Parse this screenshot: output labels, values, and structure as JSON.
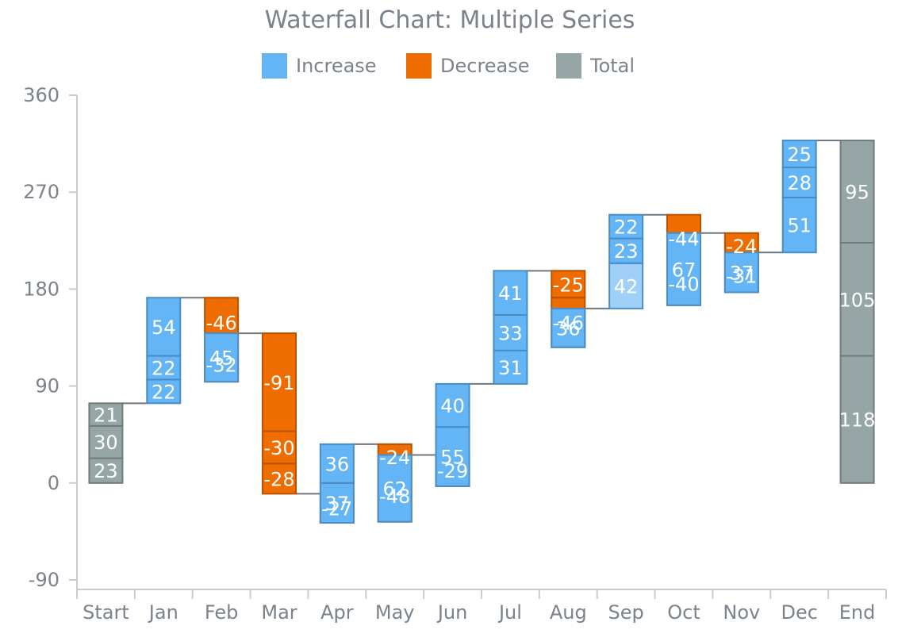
{
  "chart_data": {
    "type": "bar",
    "title": "Waterfall Chart: Multiple Series",
    "xlabel": "",
    "ylabel": "",
    "ylim": [
      -90,
      360
    ],
    "yticks": [
      -90,
      0,
      90,
      180,
      270,
      360
    ],
    "categories": [
      "Start",
      "Jan",
      "Feb",
      "Mar",
      "Apr",
      "May",
      "Jun",
      "Jul",
      "Aug",
      "Sep",
      "Oct",
      "Nov",
      "Dec",
      "End"
    ],
    "legend": [
      {
        "name": "Increase",
        "color": "#64b5f6"
      },
      {
        "name": "Decrease",
        "color": "#ef6c00"
      },
      {
        "name": "Total",
        "color": "#96a6a6"
      }
    ],
    "legend_position": "top",
    "grid": false,
    "colors": {
      "increase_fill": "#64b5f6",
      "increase_stroke": "#4a8cc4",
      "increase_light_fill": "#a0d0f8",
      "decrease_fill": "#ef6c00",
      "decrease_stroke": "#b85200",
      "total_fill": "#96a6a6",
      "total_stroke": "#707c7c",
      "connector": "#6e7880",
      "axis": "#cccccc",
      "text": "#7a828c"
    },
    "series": [
      {
        "category": "Start",
        "kind": "total",
        "segments": [
          23,
          30,
          21
        ]
      },
      {
        "category": "Jan",
        "kind": "change",
        "segments": [
          22,
          22,
          54
        ]
      },
      {
        "category": "Feb",
        "kind": "change",
        "segments": [
          -46,
          -32,
          45
        ]
      },
      {
        "category": "Mar",
        "kind": "change",
        "segments": [
          -91,
          -30,
          -28
        ]
      },
      {
        "category": "Apr",
        "kind": "change",
        "segments": [
          -27,
          37,
          36
        ]
      },
      {
        "category": "May",
        "kind": "change",
        "segments": [
          -24,
          -48,
          62
        ]
      },
      {
        "category": "Jun",
        "kind": "change",
        "segments": [
          -29,
          55,
          40
        ]
      },
      {
        "category": "Jul",
        "kind": "change",
        "segments": [
          31,
          33,
          41
        ]
      },
      {
        "category": "Aug",
        "kind": "change",
        "segments": [
          -25,
          -46,
          36
        ]
      },
      {
        "category": "Sep",
        "kind": "change",
        "segments": [
          42,
          23,
          22
        ],
        "highlight_segment": 0
      },
      {
        "category": "Oct",
        "kind": "change",
        "segments": [
          -44,
          -40,
          67
        ]
      },
      {
        "category": "Nov",
        "kind": "change",
        "segments": [
          -24,
          -31,
          37
        ]
      },
      {
        "category": "Dec",
        "kind": "change",
        "segments": [
          51,
          28,
          25
        ]
      },
      {
        "category": "End",
        "kind": "total",
        "segments": [
          118,
          105,
          95
        ]
      }
    ]
  }
}
